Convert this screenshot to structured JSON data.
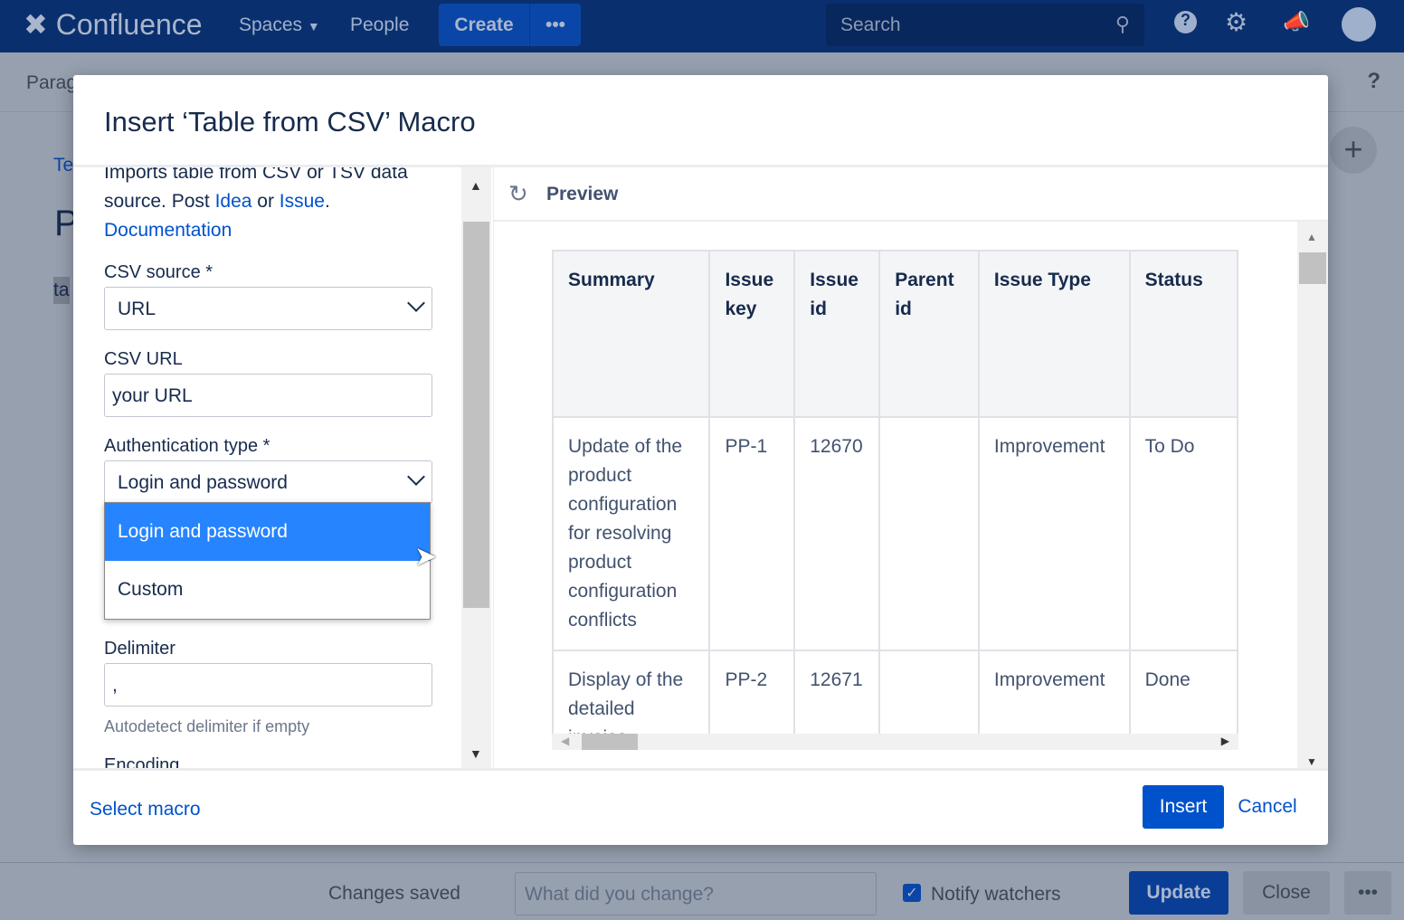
{
  "topbar": {
    "logo": "Confluence",
    "spaces": "Spaces",
    "people": "People",
    "create": "Create",
    "more": "•••",
    "search_placeholder": "Search"
  },
  "toolbar": {
    "paragraph": "Parag"
  },
  "page": {
    "breadcrumb": "Te",
    "title": "P",
    "tag": "ta"
  },
  "modal": {
    "title": "Insert ‘Table from CSV’ Macro",
    "description_pre": "Imports table from CSV or TSV data source. Post ",
    "idea": "Idea",
    "or": " or ",
    "issue": "Issue",
    "period": ".",
    "documentation": "Documentation",
    "csv_source_label": "CSV source *",
    "csv_source_value": "URL",
    "csv_url_label": "CSV URL",
    "csv_url_value": "your URL",
    "auth_label": "Authentication type *",
    "auth_value": "Login and password",
    "auth_options": [
      "Login and password",
      "Custom"
    ],
    "delimiter_label": "Delimiter",
    "delimiter_value": ",",
    "delimiter_help": "Autodetect delimiter if empty",
    "encoding_label": "Encoding",
    "preview_label": "Preview",
    "table": {
      "headers": [
        "Summary",
        "Issue key",
        "Issue id",
        "Parent id",
        "Issue Type",
        "Status"
      ],
      "rows": [
        [
          "Update of the product configuration for resolving product configuration conflicts",
          "PP-1",
          "12670",
          "",
          "Improvement",
          "To Do"
        ],
        [
          "Display of the detailed invoice",
          "PP-2",
          "12671",
          "",
          "Improvement",
          "Done"
        ]
      ]
    },
    "select_macro": "Select macro",
    "insert": "Insert",
    "cancel": "Cancel"
  },
  "bottom": {
    "changes_saved": "Changes saved",
    "comment_placeholder": "What did you change?",
    "notify": "Notify watchers",
    "update": "Update",
    "close": "Close",
    "more": "•••"
  },
  "colors": {
    "primary": "#0052cc",
    "selected": "#2684ff"
  }
}
